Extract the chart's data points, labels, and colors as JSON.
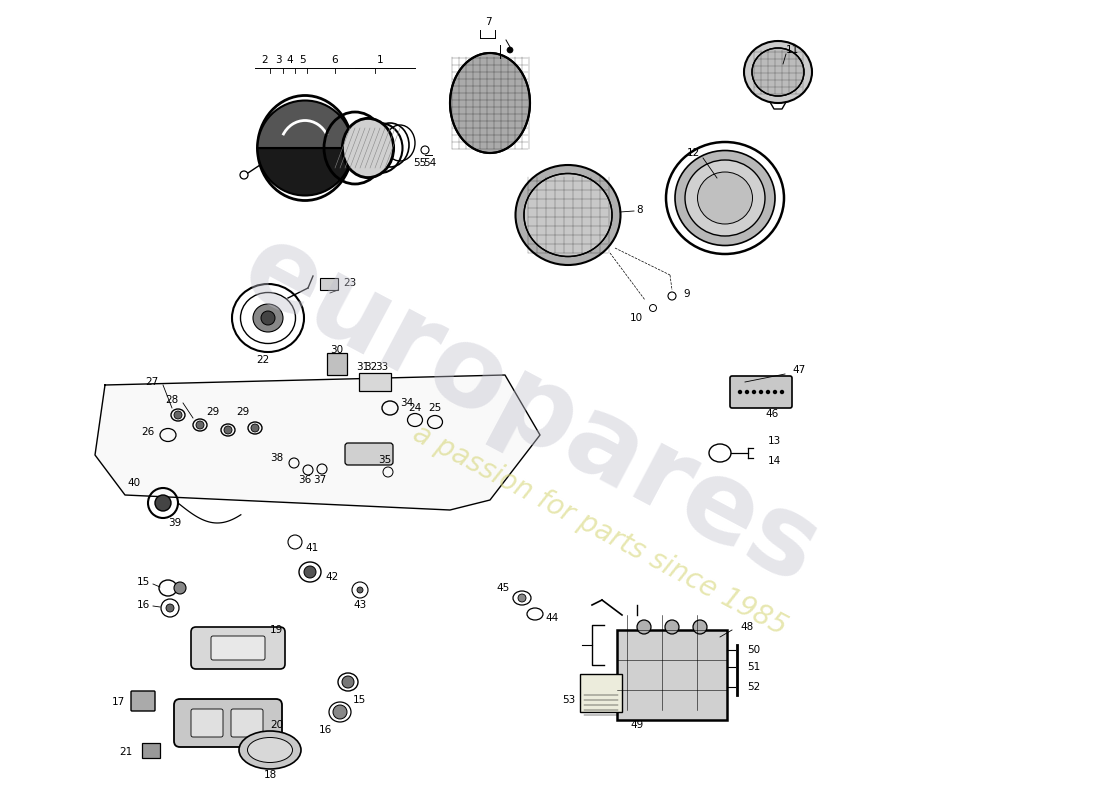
{
  "bg_color": "#ffffff",
  "watermark_text1": "europares",
  "watermark_text2": "a passion for parts since 1985",
  "wm1_color": "#c0c0cc",
  "wm2_color": "#d4d470",
  "wm1_alpha": 0.4,
  "wm2_alpha": 0.55,
  "wm1_fontsize": 80,
  "wm2_fontsize": 20,
  "wm_rotation": -28
}
